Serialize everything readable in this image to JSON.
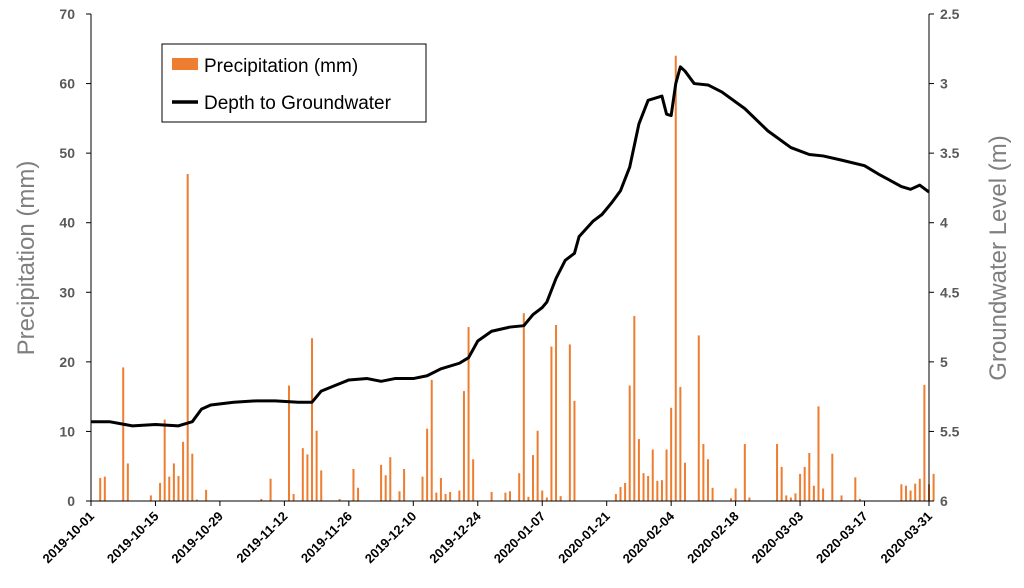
{
  "chart_data": {
    "type": "bar+line",
    "ylabel_left": "Precipitation (mm)",
    "ylabel_right": "Groundwater Level (m)",
    "ylim_left": [
      0,
      70
    ],
    "ylim_right": [
      2.5,
      6
    ],
    "right_axis_inverted": true,
    "left_ticks": [
      "0",
      "10",
      "20",
      "30",
      "40",
      "50",
      "60",
      "70"
    ],
    "right_ticks": [
      "2.5",
      "3",
      "3.5",
      "4",
      "4.5",
      "5",
      "5.5",
      "6"
    ],
    "x_tick_labels": [
      "2019-10-01",
      "2019-10-15",
      "2019-10-29",
      "2019-11-12",
      "2019-11-26",
      "2019-12-10",
      "2019-12-24",
      "2020-01-07",
      "2020-01-21",
      "2020-02-04",
      "2020-02-18",
      "2020-03-03",
      "2020-03-17",
      "2020-03-31"
    ],
    "x_start": "2019-10-01",
    "x_end": "2020-03-31",
    "legend": {
      "position": "top-left",
      "entries": [
        "Precipitation (mm)",
        "Depth to Groundwater"
      ]
    },
    "colors": {
      "precipitation": "#ed7d31",
      "groundwater": "#000000",
      "axis": "#000000",
      "tick_text": "#595959",
      "axis_title": "#7f7f7f"
    },
    "series": [
      {
        "name": "Precipitation (mm)",
        "type": "bar",
        "axis": "left",
        "points": [
          [
            "2019-10-03",
            3.3
          ],
          [
            "2019-10-04",
            3.5
          ],
          [
            "2019-10-08",
            19.2
          ],
          [
            "2019-10-09",
            5.4
          ],
          [
            "2019-10-14",
            0.8
          ],
          [
            "2019-10-16",
            2.6
          ],
          [
            "2019-10-17",
            11.7
          ],
          [
            "2019-10-18",
            3.5
          ],
          [
            "2019-10-19",
            5.4
          ],
          [
            "2019-10-20",
            3.6
          ],
          [
            "2019-10-21",
            8.5
          ],
          [
            "2019-10-22",
            47.0
          ],
          [
            "2019-10-23",
            6.8
          ],
          [
            "2019-10-24",
            0.2
          ],
          [
            "2019-10-26",
            1.6
          ],
          [
            "2019-11-07",
            0.3
          ],
          [
            "2019-11-09",
            3.2
          ],
          [
            "2019-11-13",
            16.6
          ],
          [
            "2019-11-14",
            1.0
          ],
          [
            "2019-11-16",
            7.6
          ],
          [
            "2019-11-17",
            6.7
          ],
          [
            "2019-11-18",
            23.4
          ],
          [
            "2019-11-19",
            10.1
          ],
          [
            "2019-11-20",
            4.4
          ],
          [
            "2019-11-24",
            0.3
          ],
          [
            "2019-11-27",
            4.6
          ],
          [
            "2019-11-28",
            1.9
          ],
          [
            "2019-12-03",
            5.2
          ],
          [
            "2019-12-04",
            3.7
          ],
          [
            "2019-12-05",
            6.3
          ],
          [
            "2019-12-07",
            1.4
          ],
          [
            "2019-12-08",
            4.6
          ],
          [
            "2019-12-12",
            3.5
          ],
          [
            "2019-12-13",
            10.4
          ],
          [
            "2019-12-14",
            17.4
          ],
          [
            "2019-12-15",
            1.2
          ],
          [
            "2019-12-16",
            3.3
          ],
          [
            "2019-12-17",
            1.0
          ],
          [
            "2019-12-18",
            1.3
          ],
          [
            "2019-12-20",
            1.5
          ],
          [
            "2019-12-21",
            15.8
          ],
          [
            "2019-12-22",
            25.0
          ],
          [
            "2019-12-23",
            6.0
          ],
          [
            "2019-12-27",
            1.3
          ],
          [
            "2019-12-30",
            1.2
          ],
          [
            "2019-12-31",
            1.4
          ],
          [
            "2020-01-02",
            4.0
          ],
          [
            "2020-01-03",
            27.0
          ],
          [
            "2020-01-04",
            0.6
          ],
          [
            "2020-01-05",
            6.6
          ],
          [
            "2020-01-06",
            10.1
          ],
          [
            "2020-01-07",
            1.5
          ],
          [
            "2020-01-08",
            0.5
          ],
          [
            "2020-01-09",
            22.2
          ],
          [
            "2020-01-10",
            25.3
          ],
          [
            "2020-01-11",
            0.7
          ],
          [
            "2020-01-13",
            22.5
          ],
          [
            "2020-01-14",
            14.4
          ],
          [
            "2020-01-23",
            1.0
          ],
          [
            "2020-01-24",
            2.0
          ],
          [
            "2020-01-25",
            2.6
          ],
          [
            "2020-01-26",
            16.6
          ],
          [
            "2020-01-27",
            26.6
          ],
          [
            "2020-01-28",
            8.9
          ],
          [
            "2020-01-29",
            4.0
          ],
          [
            "2020-01-30",
            3.6
          ],
          [
            "2020-01-31",
            7.4
          ],
          [
            "2020-02-01",
            2.9
          ],
          [
            "2020-02-02",
            3.0
          ],
          [
            "2020-02-03",
            7.4
          ],
          [
            "2020-02-04",
            13.4
          ],
          [
            "2020-02-05",
            64.0
          ],
          [
            "2020-02-06",
            16.4
          ],
          [
            "2020-02-07",
            5.5
          ],
          [
            "2020-02-10",
            23.8
          ],
          [
            "2020-02-11",
            8.2
          ],
          [
            "2020-02-12",
            6.0
          ],
          [
            "2020-02-13",
            1.9
          ],
          [
            "2020-02-17",
            0.4
          ],
          [
            "2020-02-18",
            1.8
          ],
          [
            "2020-02-20",
            8.2
          ],
          [
            "2020-02-21",
            0.5
          ],
          [
            "2020-02-27",
            8.2
          ],
          [
            "2020-02-28",
            4.9
          ],
          [
            "2020-02-29",
            0.8
          ],
          [
            "2020-03-01",
            0.5
          ],
          [
            "2020-03-02",
            1.1
          ],
          [
            "2020-03-03",
            3.9
          ],
          [
            "2020-03-04",
            4.9
          ],
          [
            "2020-03-05",
            6.9
          ],
          [
            "2020-03-06",
            2.2
          ],
          [
            "2020-03-07",
            13.6
          ],
          [
            "2020-03-08",
            1.8
          ],
          [
            "2020-03-10",
            6.8
          ],
          [
            "2020-03-12",
            0.8
          ],
          [
            "2020-03-15",
            3.4
          ],
          [
            "2020-03-16",
            0.3
          ],
          [
            "2020-03-25",
            2.4
          ],
          [
            "2020-03-26",
            2.2
          ],
          [
            "2020-03-27",
            1.5
          ],
          [
            "2020-03-28",
            2.5
          ],
          [
            "2020-03-29",
            3.2
          ],
          [
            "2020-03-30",
            16.7
          ],
          [
            "2020-03-31",
            2.4
          ],
          [
            "2020-04-01",
            3.9
          ]
        ]
      },
      {
        "name": "Depth to Groundwater",
        "type": "line",
        "axis": "right",
        "points": [
          [
            "2019-10-01",
            5.43
          ],
          [
            "2019-10-05",
            5.43
          ],
          [
            "2019-10-10",
            5.46
          ],
          [
            "2019-10-15",
            5.45
          ],
          [
            "2019-10-20",
            5.46
          ],
          [
            "2019-10-23",
            5.43
          ],
          [
            "2019-10-25",
            5.34
          ],
          [
            "2019-10-27",
            5.31
          ],
          [
            "2019-11-01",
            5.29
          ],
          [
            "2019-11-06",
            5.28
          ],
          [
            "2019-11-10",
            5.28
          ],
          [
            "2019-11-15",
            5.29
          ],
          [
            "2019-11-18",
            5.29
          ],
          [
            "2019-11-20",
            5.21
          ],
          [
            "2019-11-23",
            5.17
          ],
          [
            "2019-11-26",
            5.13
          ],
          [
            "2019-11-30",
            5.12
          ],
          [
            "2019-12-03",
            5.14
          ],
          [
            "2019-12-06",
            5.12
          ],
          [
            "2019-12-10",
            5.12
          ],
          [
            "2019-12-13",
            5.1
          ],
          [
            "2019-12-16",
            5.05
          ],
          [
            "2019-12-20",
            5.01
          ],
          [
            "2019-12-22",
            4.97
          ],
          [
            "2019-12-24",
            4.85
          ],
          [
            "2019-12-27",
            4.78
          ],
          [
            "2019-12-31",
            4.75
          ],
          [
            "2020-01-03",
            4.74
          ],
          [
            "2020-01-05",
            4.66
          ],
          [
            "2020-01-07",
            4.61
          ],
          [
            "2020-01-08",
            4.57
          ],
          [
            "2020-01-10",
            4.4
          ],
          [
            "2020-01-12",
            4.27
          ],
          [
            "2020-01-14",
            4.22
          ],
          [
            "2020-01-15",
            4.1
          ],
          [
            "2020-01-18",
            3.99
          ],
          [
            "2020-01-20",
            3.94
          ],
          [
            "2020-01-22",
            3.86
          ],
          [
            "2020-01-24",
            3.77
          ],
          [
            "2020-01-26",
            3.6
          ],
          [
            "2020-01-28",
            3.29
          ],
          [
            "2020-01-30",
            3.12
          ],
          [
            "2020-02-02",
            3.09
          ],
          [
            "2020-02-03",
            3.22
          ],
          [
            "2020-02-04",
            3.23
          ],
          [
            "2020-02-05",
            3.0
          ],
          [
            "2020-02-06",
            2.88
          ],
          [
            "2020-02-07",
            2.91
          ],
          [
            "2020-02-09",
            3.0
          ],
          [
            "2020-02-12",
            3.01
          ],
          [
            "2020-02-15",
            3.06
          ],
          [
            "2020-02-20",
            3.18
          ],
          [
            "2020-02-25",
            3.34
          ],
          [
            "2020-03-01",
            3.46
          ],
          [
            "2020-03-05",
            3.51
          ],
          [
            "2020-03-08",
            3.52
          ],
          [
            "2020-03-12",
            3.55
          ],
          [
            "2020-03-17",
            3.59
          ],
          [
            "2020-03-20",
            3.65
          ],
          [
            "2020-03-25",
            3.74
          ],
          [
            "2020-03-27",
            3.76
          ],
          [
            "2020-03-29",
            3.73
          ],
          [
            "2020-04-01",
            3.78
          ]
        ]
      }
    ]
  }
}
